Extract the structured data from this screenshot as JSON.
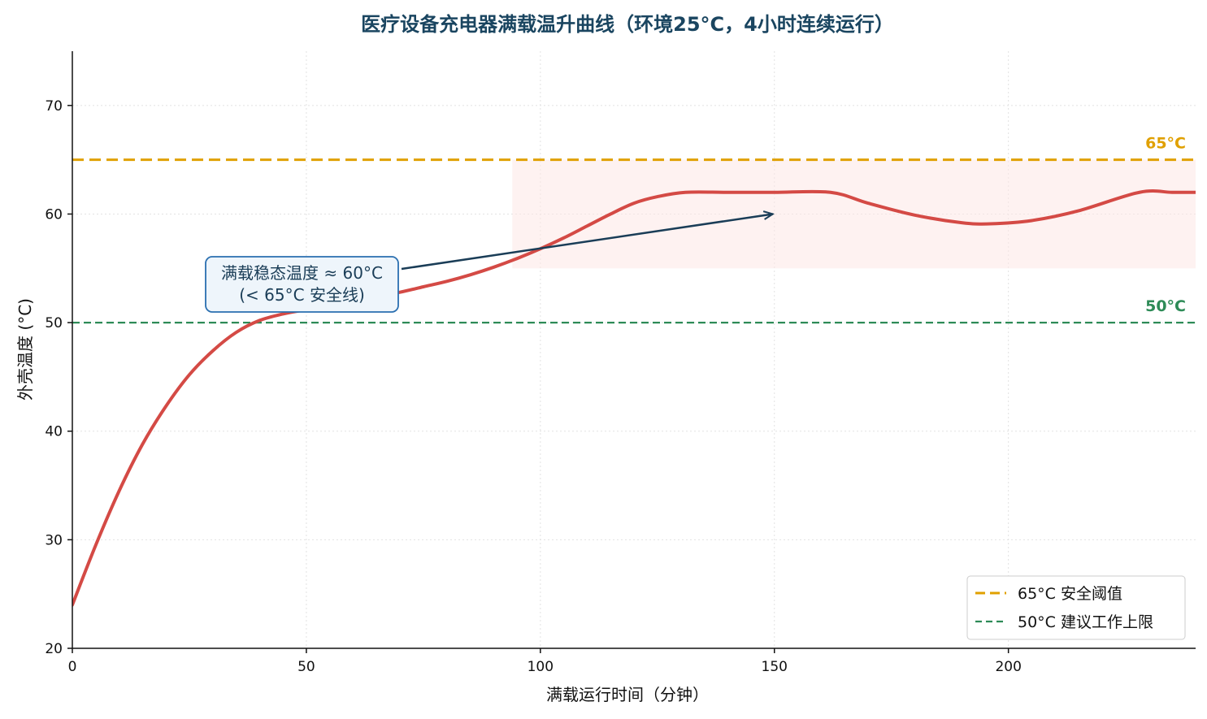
{
  "chart_data": {
    "type": "line",
    "title": "医疗设备充电器满载温升曲线（环境25°C，4小时连续运行）",
    "xlabel": "满载运行时间（分钟）",
    "ylabel": "外壳温度 (°C)",
    "xlim": [
      0,
      240
    ],
    "ylim": [
      20,
      75
    ],
    "xticks": [
      0,
      50,
      100,
      150,
      200
    ],
    "yticks": [
      20,
      30,
      40,
      50,
      60,
      70
    ],
    "grid": true,
    "legend_placement": "lower-right",
    "series": [
      {
        "color": "#d44a45",
        "x": [
          0,
          5,
          10,
          15,
          20,
          25,
          30,
          35,
          40,
          45,
          50,
          55,
          60,
          65,
          70,
          75,
          80,
          85,
          90,
          95,
          100,
          105,
          110,
          115,
          120,
          125,
          131,
          140,
          150,
          162,
          170,
          180,
          190,
          196,
          205,
          215,
          228,
          235,
          240
        ],
        "y": [
          24,
          29.5,
          34.5,
          38.8,
          42.3,
          45.2,
          47.4,
          49.1,
          50.2,
          50.8,
          51.2,
          51.6,
          52.0,
          52.4,
          52.8,
          53.3,
          53.8,
          54.4,
          55.1,
          55.9,
          56.8,
          57.8,
          58.9,
          60.0,
          61.0,
          61.6,
          62,
          62,
          62,
          62,
          61.0,
          59.9,
          59.2,
          59.1,
          59.4,
          60.3,
          62,
          62,
          62
        ]
      }
    ],
    "reference_lines": [
      {
        "name": "65°C 安全阈值",
        "value": 65,
        "label": "65°C",
        "color": "#e0a000",
        "style": "dashed-thick"
      },
      {
        "name": "50°C 建议工作上限",
        "value": 50,
        "label": "50°C",
        "color": "#2e8b57",
        "style": "dashed-thin"
      }
    ],
    "shaded_region": {
      "x_start": 94,
      "x_end": 240,
      "y_start": 55,
      "y_end": 65,
      "color": "#fde8e6"
    },
    "annotation": {
      "text_line1": "满载稳态温度 ≈ 60°C",
      "text_line2": "(< 65°C 安全线)",
      "arrow_to": [
        150,
        60
      ],
      "box_anchor": [
        50,
        53.5
      ]
    }
  }
}
